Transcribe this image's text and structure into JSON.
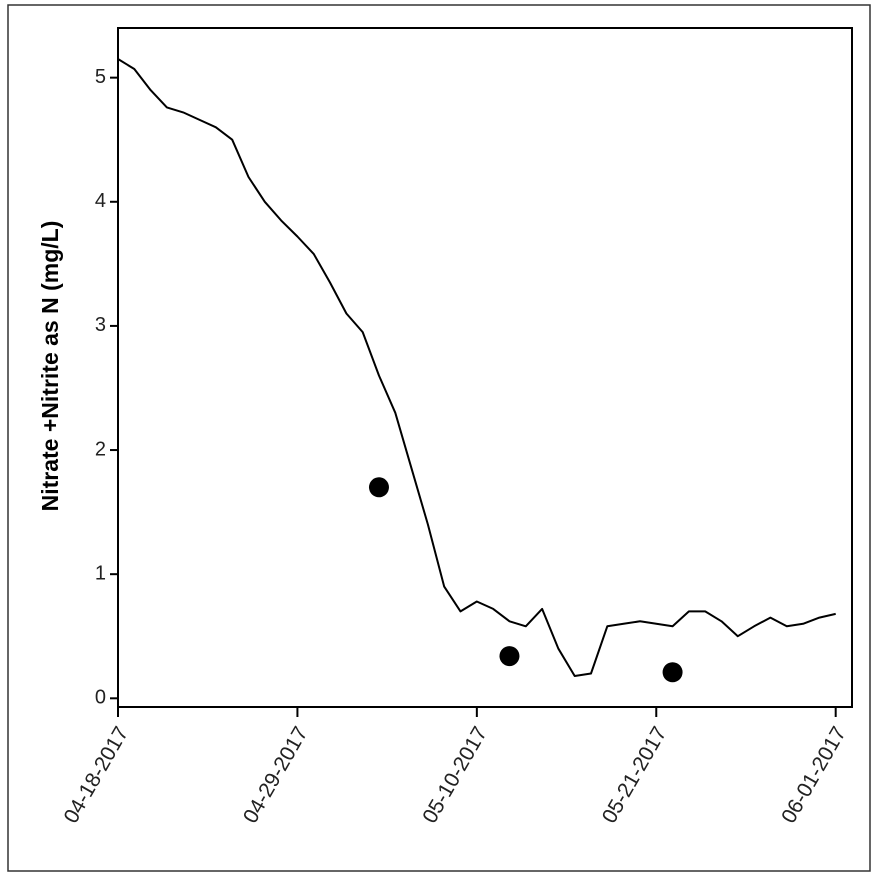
{
  "chart_data": {
    "type": "line",
    "y_label": "Nitrate +Nitrite as N (mg/L)",
    "x": [
      "2017-04-18",
      "2017-04-19",
      "2017-04-20",
      "2017-04-21",
      "2017-04-22",
      "2017-04-23",
      "2017-04-24",
      "2017-04-25",
      "2017-04-26",
      "2017-04-27",
      "2017-04-28",
      "2017-04-29",
      "2017-04-30",
      "2017-05-01",
      "2017-05-02",
      "2017-05-03",
      "2017-05-04",
      "2017-05-05",
      "2017-05-06",
      "2017-05-07",
      "2017-05-08",
      "2017-05-09",
      "2017-05-10",
      "2017-05-11",
      "2017-05-12",
      "2017-05-13",
      "2017-05-14",
      "2017-05-15",
      "2017-05-16",
      "2017-05-17",
      "2017-05-18",
      "2017-05-19",
      "2017-05-20",
      "2017-05-21",
      "2017-05-22",
      "2017-05-23",
      "2017-05-24",
      "2017-05-25",
      "2017-05-26",
      "2017-05-27",
      "2017-05-28",
      "2017-05-29",
      "2017-05-30",
      "2017-05-31",
      "2017-06-01"
    ],
    "series": [
      {
        "type": "line",
        "color": "#000000",
        "values": [
          5.15,
          5.07,
          4.9,
          4.76,
          4.72,
          4.66,
          4.6,
          4.5,
          4.2,
          4.0,
          3.85,
          3.72,
          3.58,
          3.35,
          3.1,
          2.95,
          2.6,
          2.3,
          1.85,
          1.4,
          0.9,
          0.7,
          0.78,
          0.72,
          0.62,
          0.58,
          0.72,
          0.4,
          0.18,
          0.2,
          0.58,
          0.6,
          0.62,
          0.6,
          0.58,
          0.7,
          0.7,
          0.62,
          0.5,
          0.58,
          0.65,
          0.58,
          0.6,
          0.65,
          0.68
        ]
      },
      {
        "type": "scatter",
        "color": "#000000",
        "x": [
          "2017-05-04",
          "2017-05-12",
          "2017-05-22"
        ],
        "values": [
          1.7,
          0.34,
          0.21
        ]
      }
    ],
    "xlim": [
      "2017-04-18",
      "2017-06-02"
    ],
    "xticks": [
      {
        "value": "2017-04-18",
        "label": "04-18-2017"
      },
      {
        "value": "2017-04-29",
        "label": "04-29-2017"
      },
      {
        "value": "2017-05-10",
        "label": "05-10-2017"
      },
      {
        "value": "2017-05-21",
        "label": "05-21-2017"
      },
      {
        "value": "2017-06-01",
        "label": "06-01-2017"
      }
    ],
    "ylim": [
      -0.07,
      5.4
    ],
    "yticks": [
      0,
      1,
      2,
      3,
      4,
      5
    ],
    "grid": false
  }
}
